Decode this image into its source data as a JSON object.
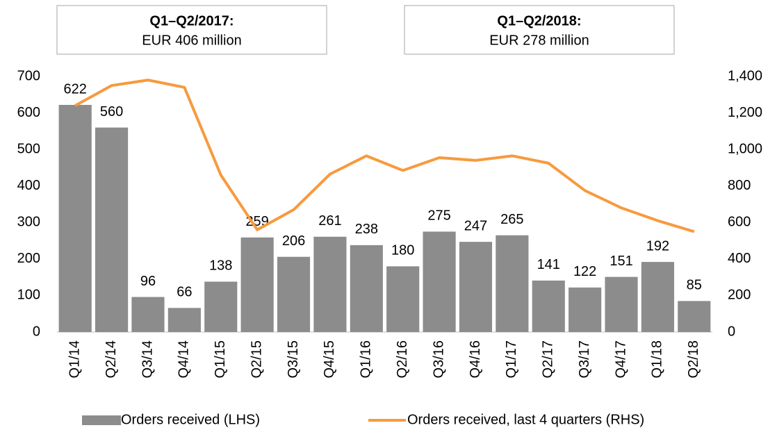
{
  "chart_data": {
    "type": "bar_line",
    "annotations": [
      {
        "title": "Q1–Q2/2017:",
        "text": "EUR 406 million"
      },
      {
        "title": "Q1–Q2/2018:",
        "text": "EUR 278 million"
      }
    ],
    "categories": [
      "Q1/14",
      "Q2/14",
      "Q3/14",
      "Q4/14",
      "Q1/15",
      "Q2/15",
      "Q3/15",
      "Q4/15",
      "Q1/16",
      "Q2/16",
      "Q3/16",
      "Q4/16",
      "Q1/17",
      "Q2/17",
      "Q3/17",
      "Q4/17",
      "Q1/18",
      "Q2/18"
    ],
    "series": [
      {
        "name": "Orders received (LHS)",
        "type": "bar",
        "color": "#8c8c8c",
        "axis": "y",
        "values": [
          622,
          560,
          96,
          66,
          138,
          259,
          206,
          261,
          238,
          180,
          275,
          247,
          265,
          141,
          122,
          151,
          192,
          85
        ]
      },
      {
        "name": "Orders received, last 4 quarters (RHS)",
        "type": "line",
        "color": "#f79a3e",
        "axis": "y2",
        "values": [
          1240,
          1350,
          1380,
          1340,
          860,
          560,
          670,
          865,
          965,
          885,
          955,
          940,
          965,
          925,
          775,
          680,
          610,
          550
        ]
      }
    ],
    "ylim": [
      0,
      700
    ],
    "yticks": [
      0,
      100,
      200,
      300,
      400,
      500,
      600,
      700
    ],
    "y2lim": [
      0,
      1400
    ],
    "y2ticks": [
      0,
      200,
      400,
      600,
      800,
      {
        "value": 1000,
        "label": "1,000"
      },
      {
        "value": 1200,
        "label": "1,200"
      },
      {
        "value": 1400,
        "label": "1,400"
      }
    ],
    "grid": false,
    "legend": "bottom"
  }
}
